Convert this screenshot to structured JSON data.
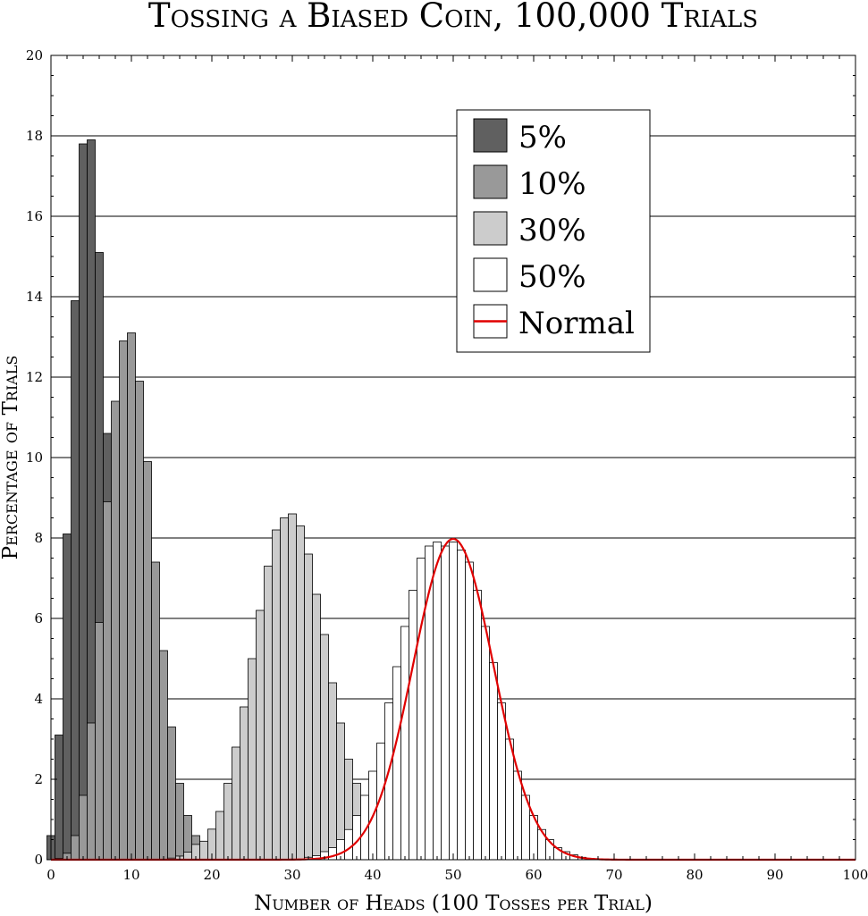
{
  "chart_data": {
    "type": "bar",
    "title": "Tossing a Biased Coin, 100,000 Trials",
    "xlabel": "Number of Heads (100 Tosses per Trial)",
    "ylabel": "Percentage of Trials",
    "xlim": [
      0,
      100
    ],
    "ylim": [
      0,
      20
    ],
    "x_ticks": [
      0,
      10,
      20,
      30,
      40,
      50,
      60,
      70,
      80,
      90,
      100
    ],
    "y_ticks": [
      0,
      2,
      4,
      6,
      8,
      10,
      12,
      14,
      16,
      18,
      20
    ],
    "grid": "horizontal lines at major y ticks",
    "legend": {
      "placement": "top-center",
      "entries": [
        "5%",
        "10%",
        "30%",
        "50%",
        "Normal"
      ]
    },
    "series": [
      {
        "name": "5%",
        "color": "#606060",
        "x": [
          0,
          1,
          2,
          3,
          4,
          5,
          6,
          7,
          8,
          9,
          10,
          11,
          12,
          13,
          14,
          15
        ],
        "values": [
          0.6,
          3.1,
          8.1,
          13.9,
          17.8,
          17.9,
          15.1,
          10.6,
          6.5,
          3.5,
          1.7,
          0.7,
          0.3,
          0.1,
          0.04,
          0.01
        ]
      },
      {
        "name": "10%",
        "color": "#999999",
        "x": [
          0,
          1,
          2,
          3,
          4,
          5,
          6,
          7,
          8,
          9,
          10,
          11,
          12,
          13,
          14,
          15,
          16,
          17,
          18,
          19,
          20,
          21,
          22
        ],
        "values": [
          0.003,
          0.03,
          0.16,
          0.6,
          1.6,
          3.4,
          5.9,
          8.9,
          11.4,
          12.9,
          13.1,
          11.9,
          9.9,
          7.4,
          5.2,
          3.3,
          1.9,
          1.1,
          0.6,
          0.3,
          0.11,
          0.05,
          0.02
        ]
      },
      {
        "name": "30%",
        "color": "#cccccc",
        "x": [
          15,
          16,
          17,
          18,
          19,
          20,
          21,
          22,
          23,
          24,
          25,
          26,
          27,
          28,
          29,
          30,
          31,
          32,
          33,
          34,
          35,
          36,
          37,
          38,
          39,
          40,
          41,
          42,
          43,
          44,
          45
        ],
        "values": [
          0.04,
          0.09,
          0.19,
          0.38,
          0.46,
          0.76,
          1.2,
          1.9,
          2.8,
          3.8,
          5.0,
          6.2,
          7.3,
          8.2,
          8.5,
          8.6,
          8.3,
          7.6,
          6.6,
          5.6,
          4.4,
          3.4,
          2.5,
          1.9,
          1.3,
          0.85,
          0.5,
          0.3,
          0.17,
          0.1,
          0.05
        ]
      },
      {
        "name": "50%",
        "color": "#ffffff",
        "x": [
          32,
          33,
          34,
          35,
          36,
          37,
          38,
          39,
          40,
          41,
          42,
          43,
          44,
          45,
          46,
          47,
          48,
          49,
          50,
          51,
          52,
          53,
          54,
          55,
          56,
          57,
          58,
          59,
          60,
          61,
          62,
          63,
          64,
          65,
          66,
          67,
          68
        ],
        "values": [
          0.06,
          0.1,
          0.2,
          0.3,
          0.5,
          0.75,
          1.1,
          1.6,
          2.2,
          2.9,
          3.9,
          4.8,
          5.8,
          6.7,
          7.5,
          7.8,
          7.9,
          7.8,
          7.9,
          7.7,
          7.4,
          6.7,
          5.8,
          4.9,
          3.9,
          3.0,
          2.2,
          1.6,
          1.1,
          0.75,
          0.5,
          0.3,
          0.2,
          0.12,
          0.06,
          0.03,
          0.02
        ]
      },
      {
        "name": "Normal",
        "color": "#e00000",
        "type": "line",
        "mean": 50,
        "sd": 5
      }
    ]
  }
}
